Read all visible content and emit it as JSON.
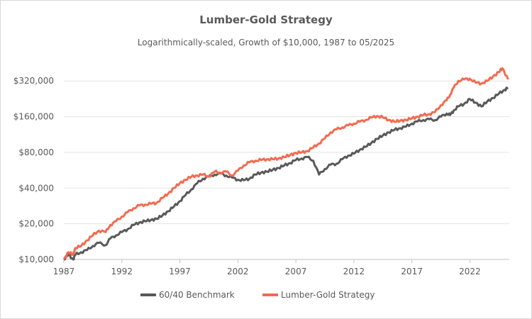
{
  "chart_data": {
    "type": "line",
    "title": "Lumber-Gold Strategy",
    "subtitle": "Logarithmically-scaled, Growth of $10,000, 1987 to 05/2025",
    "yscale": "log",
    "ylim": [
      10000,
      400000
    ],
    "xlim": [
      1987,
      2025.4
    ],
    "x_ticks": [
      1987,
      1992,
      1997,
      2002,
      2007,
      2012,
      2017,
      2022
    ],
    "x_tick_labels": [
      "1987",
      "1992",
      "1997",
      "2002",
      "2007",
      "2012",
      "2017",
      "2022"
    ],
    "y_ticks": [
      10000,
      20000,
      40000,
      80000,
      160000,
      320000
    ],
    "y_tick_labels": [
      "$10,000",
      "$20,000",
      "$40,000",
      "$80,000",
      "$160,000",
      "$320,000"
    ],
    "grid": "horizontal",
    "legend_position": "bottom",
    "series": [
      {
        "name": "60/40 Benchmark",
        "color": "#595959",
        "x": [
          1987.0,
          1987.4,
          1987.8,
          1988.0,
          1988.5,
          1989.0,
          1989.5,
          1990.0,
          1990.6,
          1991.0,
          1991.5,
          1992.0,
          1992.5,
          1993.0,
          1993.5,
          1994.0,
          1994.5,
          1995.0,
          1995.5,
          1996.0,
          1996.5,
          1997.0,
          1997.5,
          1998.0,
          1998.5,
          1999.0,
          1999.5,
          2000.0,
          2000.5,
          2001.0,
          2001.5,
          2002.0,
          2002.5,
          2003.0,
          2003.5,
          2004.0,
          2004.5,
          2005.0,
          2005.5,
          2006.0,
          2006.5,
          2007.0,
          2007.5,
          2008.0,
          2008.5,
          2009.0,
          2009.5,
          2010.0,
          2010.5,
          2011.0,
          2011.5,
          2012.0,
          2012.5,
          2013.0,
          2013.5,
          2014.0,
          2014.5,
          2015.0,
          2015.5,
          2016.0,
          2016.5,
          2017.0,
          2017.5,
          2018.0,
          2018.5,
          2019.0,
          2019.5,
          2020.0,
          2020.3,
          2020.6,
          2021.0,
          2021.5,
          2022.0,
          2022.5,
          2023.0,
          2023.5,
          2024.0,
          2024.5,
          2025.0,
          2025.3
        ],
        "values": [
          10000,
          11000,
          10000,
          11000,
          11500,
          12000,
          13000,
          13800,
          13200,
          15000,
          16000,
          17000,
          18000,
          19500,
          20500,
          21000,
          21500,
          22000,
          23500,
          25500,
          28000,
          31000,
          35000,
          39000,
          44000,
          48000,
          50000,
          52000,
          53000,
          51000,
          49000,
          47000,
          46500,
          48000,
          52000,
          54000,
          55000,
          57000,
          59000,
          62000,
          65000,
          69000,
          71000,
          73000,
          68000,
          52000,
          58000,
          63000,
          64000,
          70000,
          75000,
          78000,
          84000,
          89000,
          96000,
          104000,
          111000,
          118000,
          124000,
          128000,
          132000,
          140000,
          146000,
          150000,
          152000,
          150000,
          160000,
          170000,
          165000,
          180000,
          195000,
          205000,
          225000,
          210000,
          195000,
          215000,
          230000,
          250000,
          270000,
          280000
        ]
      },
      {
        "name": "Lumber-Gold Strategy",
        "color": "#f26b50",
        "x": [
          1987.0,
          1987.4,
          1987.8,
          1988.0,
          1988.5,
          1989.0,
          1989.5,
          1990.0,
          1990.6,
          1991.0,
          1991.5,
          1992.0,
          1992.5,
          1993.0,
          1993.5,
          1994.0,
          1994.5,
          1995.0,
          1995.5,
          1996.0,
          1996.5,
          1997.0,
          1997.5,
          1998.0,
          1998.5,
          1999.0,
          1999.5,
          2000.0,
          2000.5,
          2001.0,
          2001.5,
          2002.0,
          2002.5,
          2003.0,
          2003.5,
          2004.0,
          2004.5,
          2005.0,
          2005.5,
          2006.0,
          2006.5,
          2007.0,
          2007.5,
          2008.0,
          2008.5,
          2009.0,
          2009.5,
          2010.0,
          2010.5,
          2011.0,
          2011.5,
          2012.0,
          2012.5,
          2013.0,
          2013.5,
          2014.0,
          2014.5,
          2015.0,
          2015.5,
          2016.0,
          2016.5,
          2017.0,
          2017.5,
          2018.0,
          2018.5,
          2019.0,
          2019.5,
          2020.0,
          2020.3,
          2020.6,
          2021.0,
          2021.5,
          2022.0,
          2022.5,
          2023.0,
          2023.5,
          2024.0,
          2024.5,
          2024.8,
          2025.3
        ],
        "values": [
          10000,
          11500,
          11000,
          12500,
          13000,
          14500,
          16000,
          17500,
          17000,
          19500,
          21000,
          23000,
          25000,
          27000,
          28500,
          29000,
          29500,
          30000,
          33000,
          36000,
          40000,
          44000,
          47000,
          50000,
          51000,
          52000,
          50000,
          55000,
          54000,
          55000,
          51000,
          56000,
          62000,
          66000,
          68000,
          69000,
          70000,
          70000,
          71000,
          73000,
          76000,
          79000,
          80000,
          82000,
          88000,
          95000,
          105000,
          118000,
          125000,
          130000,
          135000,
          140000,
          145000,
          150000,
          157000,
          162000,
          158000,
          150000,
          145000,
          148000,
          150000,
          155000,
          160000,
          165000,
          168000,
          175000,
          200000,
          220000,
          245000,
          280000,
          320000,
          330000,
          335000,
          310000,
          305000,
          320000,
          350000,
          380000,
          410000,
          330000
        ]
      }
    ]
  }
}
